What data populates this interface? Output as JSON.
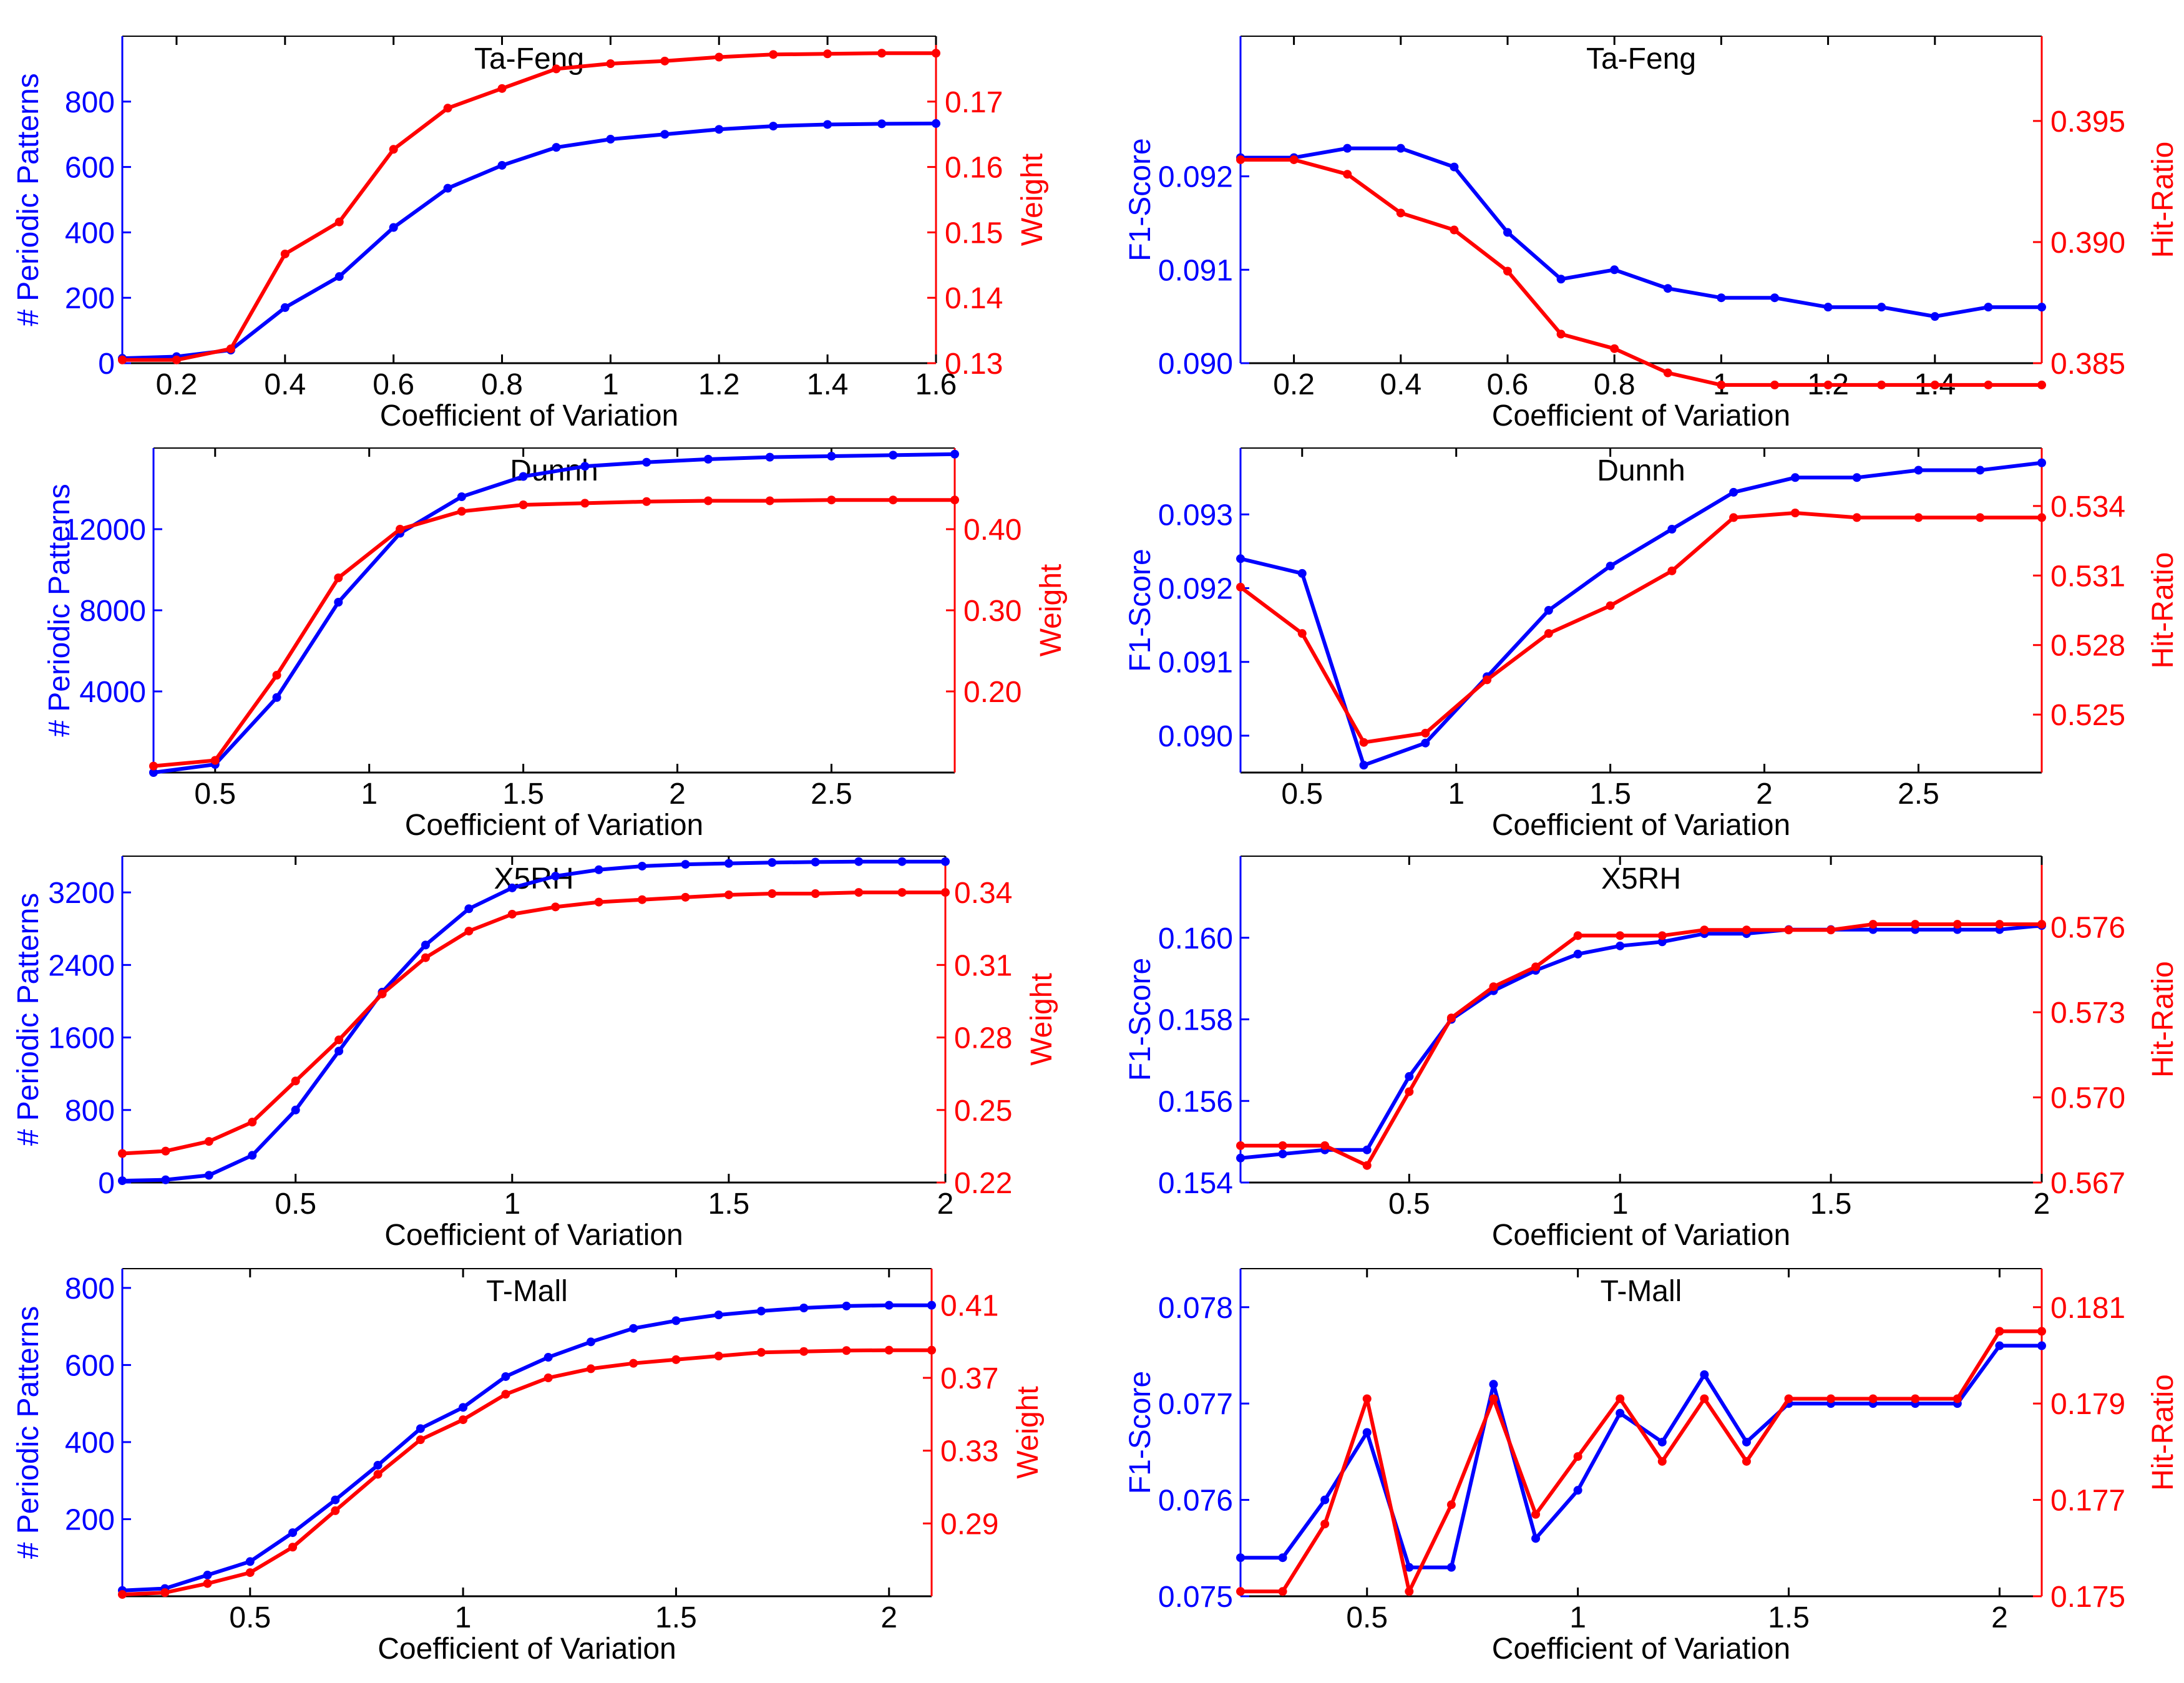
{
  "figure": {
    "xlabel": "Coefficient of Variation"
  },
  "colors": {
    "left": "#0000ff",
    "right": "#ff0000",
    "axis": "#000000"
  },
  "chart_data": [
    {
      "id": "tafeng-patterns",
      "type": "line",
      "title": "Ta-Feng",
      "xlabel": "Coefficient of Variation",
      "ylabel": "# Periodic Patterns",
      "y2label": "Weight",
      "xlim": [
        0.1,
        1.6
      ],
      "xticks": [
        0.2,
        0.4,
        0.6,
        0.8,
        1,
        1.2,
        1.4,
        1.6
      ],
      "ylim": [
        0,
        1000
      ],
      "yticks": [
        0,
        200,
        400,
        600,
        800
      ],
      "y2lim": [
        0.13,
        0.18
      ],
      "y2ticks": [
        0.13,
        0.14,
        0.15,
        0.16,
        0.17
      ],
      "y2decimals": 2,
      "x": [
        0.1,
        0.2,
        0.3,
        0.4,
        0.5,
        0.6,
        0.7,
        0.8,
        0.9,
        1,
        1.1,
        1.2,
        1.3,
        1.4,
        1.5,
        1.6
      ],
      "series": [
        {
          "axis": "left",
          "values": [
            15,
            20,
            40,
            170,
            265,
            415,
            535,
            605,
            660,
            685,
            700,
            715,
            725,
            730,
            732,
            733
          ]
        },
        {
          "axis": "right",
          "values": [
            0.1305,
            0.1305,
            0.1322,
            0.1467,
            0.1516,
            0.1627,
            0.169,
            0.172,
            0.175,
            0.1758,
            0.1762,
            0.1768,
            0.1772,
            0.1773,
            0.1774,
            0.1774
          ]
        }
      ]
    },
    {
      "id": "tafeng-f1",
      "type": "line",
      "title": "Ta-Feng",
      "xlabel": "Coefficient of Variation",
      "ylabel": "F1-Score",
      "y2label": "Hit-Ratio",
      "xlim": [
        0.1,
        1.6
      ],
      "xticks": [
        0.2,
        0.4,
        0.6,
        0.8,
        1,
        1.2,
        1.4
      ],
      "ylim": [
        0.09,
        0.0935
      ],
      "yticks": [
        0.09,
        0.091,
        0.092
      ],
      "y2lim": [
        0.385,
        0.3985
      ],
      "y2ticks": [
        0.385,
        0.39,
        0.395
      ],
      "y2decimals": 3,
      "x": [
        0.1,
        0.2,
        0.3,
        0.4,
        0.5,
        0.6,
        0.7,
        0.8,
        0.9,
        1,
        1.1,
        1.2,
        1.3,
        1.4,
        1.5,
        1.6
      ],
      "series": [
        {
          "axis": "left",
          "values": [
            0.0922,
            0.0922,
            0.0923,
            0.0923,
            0.0921,
            0.0914,
            0.0909,
            0.091,
            0.0908,
            0.0907,
            0.0907,
            0.0906,
            0.0906,
            0.0905,
            0.0906,
            0.0906
          ]
        },
        {
          "axis": "right",
          "values": [
            0.3934,
            0.3934,
            0.3928,
            0.3912,
            0.3905,
            0.3888,
            0.3862,
            0.3856,
            0.3846,
            0.3841,
            0.3841,
            0.3841,
            0.3841,
            0.3841,
            0.3841,
            0.3841
          ]
        }
      ]
    },
    {
      "id": "dunnh-patterns",
      "type": "line",
      "title": "Dunnh",
      "xlabel": "Coefficient of Variation",
      "ylabel": "# Periodic Patterns",
      "y2label": "Weight",
      "xlim": [
        0.3,
        2.9
      ],
      "xticks": [
        0.5,
        1,
        1.5,
        2,
        2.5
      ],
      "ylim": [
        0,
        16000
      ],
      "yticks": [
        4000,
        8000,
        12000
      ],
      "y2lim": [
        0.1,
        0.5
      ],
      "y2ticks": [
        0.2,
        0.3,
        0.4
      ],
      "y2decimals": 2,
      "x": [
        0.3,
        0.5,
        0.7,
        0.9,
        1.1,
        1.3,
        1.5,
        1.7,
        1.9,
        2.1,
        2.3,
        2.5,
        2.7,
        2.9
      ],
      "series": [
        {
          "axis": "left",
          "values": [
            0,
            400,
            3700,
            8400,
            11800,
            13600,
            14600,
            15100,
            15300,
            15450,
            15550,
            15600,
            15650,
            15700
          ]
        },
        {
          "axis": "right",
          "values": [
            0.108,
            0.115,
            0.22,
            0.34,
            0.4,
            0.422,
            0.43,
            0.432,
            0.434,
            0.435,
            0.435,
            0.436,
            0.436,
            0.436
          ]
        }
      ]
    },
    {
      "id": "dunnh-f1",
      "type": "line",
      "title": "Dunnh",
      "xlabel": "Coefficient of Variation",
      "ylabel": "F1-Score",
      "y2label": "Hit-Ratio",
      "xlim": [
        0.3,
        2.9
      ],
      "xticks": [
        0.5,
        1,
        1.5,
        2,
        2.5
      ],
      "ylim": [
        0.0895,
        0.0939
      ],
      "yticks": [
        0.09,
        0.091,
        0.092,
        0.093
      ],
      "y2lim": [
        0.5225,
        0.5365
      ],
      "y2ticks": [
        0.525,
        0.528,
        0.531,
        0.534
      ],
      "y2decimals": 3,
      "x": [
        0.3,
        0.5,
        0.7,
        0.9,
        1.1,
        1.3,
        1.5,
        1.7,
        1.9,
        2.1,
        2.3,
        2.5,
        2.7,
        2.9
      ],
      "series": [
        {
          "axis": "left",
          "values": [
            0.0924,
            0.0922,
            0.0896,
            0.0899,
            0.0908,
            0.0917,
            0.0923,
            0.0928,
            0.0933,
            0.0935,
            0.0935,
            0.0936,
            0.0936,
            0.0937
          ]
        },
        {
          "axis": "right",
          "values": [
            0.5305,
            0.5285,
            0.5238,
            0.5242,
            0.5265,
            0.5285,
            0.5297,
            0.5312,
            0.5335,
            0.5337,
            0.5335,
            0.5335,
            0.5335,
            0.5335
          ]
        }
      ]
    },
    {
      "id": "x5rh-patterns",
      "type": "line",
      "title": "X5RH",
      "xlabel": "Coefficient of Variation",
      "ylabel": "# Periodic Patterns",
      "y2label": "Weight",
      "xlim": [
        0.1,
        2
      ],
      "xticks": [
        0.5,
        1,
        1.5,
        2
      ],
      "ylim": [
        0,
        3600
      ],
      "yticks": [
        0,
        800,
        1600,
        2400,
        3200
      ],
      "y2lim": [
        0.22,
        0.355
      ],
      "y2ticks": [
        0.22,
        0.25,
        0.28,
        0.31,
        0.34
      ],
      "y2decimals": 2,
      "x": [
        0.1,
        0.2,
        0.3,
        0.4,
        0.5,
        0.6,
        0.7,
        0.8,
        0.9,
        1,
        1.1,
        1.2,
        1.3,
        1.4,
        1.5,
        1.6,
        1.7,
        1.8,
        1.9,
        2
      ],
      "series": [
        {
          "axis": "left",
          "values": [
            20,
            30,
            80,
            300,
            800,
            1450,
            2100,
            2620,
            3020,
            3250,
            3380,
            3450,
            3490,
            3510,
            3520,
            3530,
            3535,
            3540,
            3540,
            3540
          ]
        },
        {
          "axis": "right",
          "values": [
            0.232,
            0.233,
            0.237,
            0.245,
            0.262,
            0.279,
            0.298,
            0.313,
            0.324,
            0.331,
            0.334,
            0.336,
            0.337,
            0.338,
            0.339,
            0.3395,
            0.3395,
            0.34,
            0.34,
            0.34
          ]
        }
      ]
    },
    {
      "id": "x5rh-f1",
      "type": "line",
      "title": "X5RH",
      "xlabel": "Coefficient of Variation",
      "ylabel": "F1-Score",
      "y2label": "Hit-Ratio",
      "xlim": [
        0.1,
        2
      ],
      "xticks": [
        0.5,
        1,
        1.5,
        2
      ],
      "ylim": [
        0.154,
        0.162
      ],
      "yticks": [
        0.154,
        0.156,
        0.158,
        0.16
      ],
      "y2lim": [
        0.567,
        0.5785
      ],
      "y2ticks": [
        0.567,
        0.57,
        0.573,
        0.576
      ],
      "y2decimals": 3,
      "x": [
        0.1,
        0.2,
        0.3,
        0.4,
        0.5,
        0.6,
        0.7,
        0.8,
        0.9,
        1,
        1.1,
        1.2,
        1.3,
        1.4,
        1.5,
        1.6,
        1.7,
        1.8,
        1.9,
        2
      ],
      "series": [
        {
          "axis": "left",
          "values": [
            0.1546,
            0.1547,
            0.1548,
            0.1548,
            0.1566,
            0.158,
            0.1587,
            0.1592,
            0.1596,
            0.1598,
            0.1599,
            0.1601,
            0.1601,
            0.1602,
            0.1602,
            0.1602,
            0.1602,
            0.1602,
            0.1602,
            0.1603
          ]
        },
        {
          "axis": "right",
          "values": [
            0.5683,
            0.5683,
            0.5683,
            0.5676,
            0.5702,
            0.5728,
            0.5739,
            0.5746,
            0.5757,
            0.5757,
            0.5757,
            0.5759,
            0.5759,
            0.5759,
            0.5759,
            0.5761,
            0.5761,
            0.5761,
            0.5761,
            0.5761
          ]
        }
      ]
    },
    {
      "id": "tmall-patterns",
      "type": "line",
      "title": "T-Mall",
      "xlabel": "Coefficient of Variation",
      "ylabel": "# Periodic Patterns",
      "y2label": "Weight",
      "xlim": [
        0.2,
        2.1
      ],
      "xticks": [
        0.5,
        1,
        1.5,
        2
      ],
      "ylim": [
        0,
        850
      ],
      "yticks": [
        200,
        400,
        600,
        800
      ],
      "y2lim": [
        0.25,
        0.43
      ],
      "y2ticks": [
        0.29,
        0.33,
        0.37,
        0.41
      ],
      "y2decimals": 2,
      "x": [
        0.2,
        0.3,
        0.4,
        0.5,
        0.6,
        0.7,
        0.8,
        0.9,
        1,
        1.1,
        1.2,
        1.3,
        1.4,
        1.5,
        1.6,
        1.7,
        1.8,
        1.9,
        2,
        2.1
      ],
      "series": [
        {
          "axis": "left",
          "values": [
            15,
            20,
            55,
            90,
            165,
            250,
            340,
            435,
            490,
            570,
            620,
            660,
            695,
            715,
            730,
            740,
            748,
            753,
            755,
            755
          ]
        },
        {
          "axis": "right",
          "values": [
            0.251,
            0.252,
            0.257,
            0.263,
            0.277,
            0.297,
            0.317,
            0.336,
            0.347,
            0.361,
            0.37,
            0.375,
            0.378,
            0.38,
            0.382,
            0.384,
            0.3845,
            0.385,
            0.3852,
            0.3852
          ]
        }
      ]
    },
    {
      "id": "tmall-f1",
      "type": "line",
      "title": "T-Mall",
      "xlabel": "Coefficient of Variation",
      "ylabel": "F1-Score",
      "y2label": "Hit-Ratio",
      "xlim": [
        0.2,
        2.1
      ],
      "xticks": [
        0.5,
        1,
        1.5,
        2
      ],
      "ylim": [
        0.075,
        0.0784
      ],
      "yticks": [
        0.075,
        0.076,
        0.077,
        0.078
      ],
      "y2lim": [
        0.175,
        0.1818
      ],
      "y2ticks": [
        0.175,
        0.177,
        0.179,
        0.181
      ],
      "y2decimals": 3,
      "x": [
        0.2,
        0.3,
        0.4,
        0.5,
        0.6,
        0.7,
        0.8,
        0.9,
        1,
        1.1,
        1.2,
        1.3,
        1.4,
        1.5,
        1.6,
        1.7,
        1.8,
        1.9,
        2,
        2.1
      ],
      "series": [
        {
          "axis": "left",
          "values": [
            0.0754,
            0.0754,
            0.076,
            0.0767,
            0.0753,
            0.0753,
            0.0772,
            0.0756,
            0.0761,
            0.0769,
            0.0766,
            0.0773,
            0.0766,
            0.077,
            0.077,
            0.077,
            0.077,
            0.077,
            0.0776,
            0.0776
          ]
        },
        {
          "axis": "right",
          "values": [
            0.1751,
            0.1751,
            0.1765,
            0.1791,
            0.1751,
            0.1769,
            0.1791,
            0.1767,
            0.1779,
            0.1791,
            0.1778,
            0.1791,
            0.1778,
            0.1791,
            0.1791,
            0.1791,
            0.1791,
            0.1791,
            0.1805,
            0.1805
          ]
        }
      ]
    }
  ]
}
